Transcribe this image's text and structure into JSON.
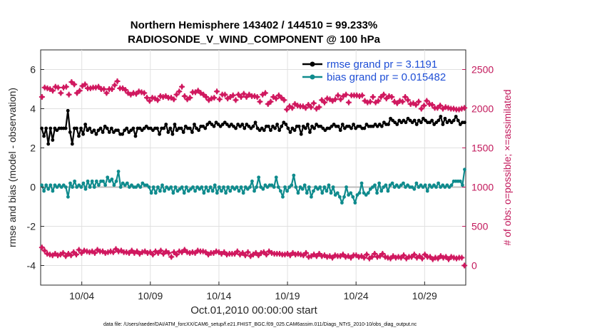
{
  "chart_data": {
    "type": "line",
    "title": "Northern Hemisphere 143402 / 144510 = 99.233%",
    "subtitle": "RADIOSONDE_V_WIND_COMPONENT @ 100 hPa",
    "xlabel": "Oct.01,2010 00:00:00 start",
    "ylabel_left": "rmse and bias (model - observation)",
    "ylabel_right": "# of obs: o=possible; ×=assimilated",
    "footnote": "data file: /Users/raeder/DAI/ATM_forcXX/CAM6_setup/f.e21.FHIST_BGC.f09_025.CAM6assim.011/Diags_NTrS_2010-10/obs_diag_output.nc",
    "x_tick_labels": [
      "10/04",
      "10/09",
      "10/14",
      "10/19",
      "10/24",
      "10/29"
    ],
    "x_tick_days": [
      4,
      9,
      14,
      19,
      24,
      29
    ],
    "x_range_days": [
      1.0,
      32.0
    ],
    "ylim_left": [
      -5,
      7
    ],
    "yticks_left": [
      "-4",
      "-2",
      "0",
      "2",
      "4",
      "6"
    ],
    "ylim_right": [
      -250,
      2750
    ],
    "yticks_right": [
      "0",
      "500",
      "1000",
      "1500",
      "2000",
      "2500"
    ],
    "grid": true,
    "legend_position": "top-right",
    "colors": {
      "rmse": "#000000",
      "bias": "#0f8b8d",
      "obs": "#d0185f",
      "right_axis": "#c2185b",
      "zero_line": "#bdbdbd",
      "legend_text": "#1f4fd6"
    },
    "series": [
      {
        "name": "rmse grand pr = 3.1191",
        "axis": "left",
        "values": [
          3.0,
          2.6,
          3.0,
          2.2,
          3.0,
          2.4,
          3.0,
          2.9,
          3.0,
          3.0,
          3.0,
          3.0,
          3.9,
          2.8,
          2.2,
          3.0,
          3.0,
          2.6,
          3.0,
          2.7,
          3.2,
          2.9,
          3.0,
          2.8,
          2.9,
          2.7,
          2.9,
          3.0,
          2.8,
          3.1,
          3.0,
          2.8,
          3.0,
          2.8,
          2.9,
          2.9,
          2.7,
          2.7,
          2.9,
          3.0,
          2.8,
          2.9,
          3.0,
          2.6,
          3.0,
          3.0,
          2.9,
          3.0,
          3.1,
          3.0,
          3.0,
          2.9,
          3.0,
          3.0,
          2.7,
          3.0,
          3.0,
          3.2,
          2.8,
          3.0,
          2.7,
          3.2,
          2.9,
          3.0,
          3.0,
          2.8,
          3.1,
          3.0,
          3.0,
          2.8,
          3.2,
          3.0,
          2.9,
          3.1,
          3.1,
          3.0,
          3.2,
          3.3,
          3.2,
          3.1,
          3.3,
          3.2,
          3.1,
          3.2,
          3.3,
          3.2,
          3.1,
          3.2,
          3.1,
          3.0,
          3.2,
          3.1,
          3.2,
          3.0,
          3.2,
          3.1,
          3.0,
          3.1,
          3.3,
          3.0,
          2.9,
          3.0,
          2.9,
          3.1,
          3.1,
          2.9,
          3.1,
          3.0,
          3.2,
          2.9,
          3.1,
          3.3,
          3.2,
          3.0,
          2.8,
          3.0,
          2.9,
          3.1,
          3.1,
          2.7,
          3.1,
          3.0,
          3.2,
          2.8,
          3.1,
          3.0,
          3.2,
          3.1,
          3.1,
          3.0,
          2.9,
          3.0,
          3.0,
          3.1,
          3.2,
          3.1,
          3.1,
          2.9,
          3.2,
          3.0,
          3.1,
          3.1,
          3.0,
          3.2,
          3.0,
          3.1,
          3.1,
          3.0,
          3.0,
          3.2,
          3.1,
          3.1,
          3.1,
          3.2,
          3.1,
          3.2,
          3.1,
          3.3,
          3.2,
          3.2,
          3.5,
          3.4,
          3.3,
          3.2,
          3.4,
          3.3,
          3.4,
          3.3,
          3.5,
          3.4,
          3.3,
          3.4,
          3.2,
          3.4,
          3.3,
          3.5,
          3.4,
          3.3,
          3.3,
          3.4,
          3.2,
          3.3,
          3.4,
          3.6,
          3.2,
          3.5,
          3.3,
          3.4,
          3.3,
          3.4,
          3.6,
          3.4,
          3.2,
          3.3,
          3.3
        ]
      },
      {
        "name": "bias grand pr = 0.015482",
        "axis": "left",
        "values": [
          0.1,
          -0.2,
          0.1,
          -0.1,
          0.1,
          -0.2,
          0.1,
          0.0,
          0.1,
          0.0,
          0.1,
          0.0,
          -0.5,
          0.2,
          0.0,
          0.3,
          0.0,
          0.1,
          0.0,
          0.2,
          -0.1,
          0.3,
          0.0,
          0.3,
          0.0,
          0.3,
          0.1,
          0.3,
          0.3,
          0.1,
          0.5,
          0.3,
          0.4,
          0.1,
          0.3,
          0.8,
          0.0,
          0.2,
          0.1,
          0.2,
          0.0,
          0.1,
          0.0,
          0.0,
          0.1,
          0.0,
          0.2,
          0.1,
          0.1,
          0.0,
          -0.3,
          0.0,
          -0.3,
          0.0,
          -0.2,
          0.1,
          -0.2,
          0.0,
          -0.1,
          0.0,
          -0.3,
          0.0,
          -0.2,
          -0.1,
          0.0,
          -0.3,
          0.0,
          -0.2,
          -0.1,
          0.0,
          -0.2,
          0.0,
          -0.1,
          0.0,
          -0.3,
          0.0,
          -0.2,
          0.0,
          -0.2,
          0.1,
          -0.3,
          0.0,
          -0.2,
          0.0,
          -0.3,
          0.0,
          -0.2,
          0.0,
          -0.1,
          0.0,
          -0.2,
          0.0,
          -0.3,
          0.0,
          -0.1,
          0.0,
          0.3,
          -0.2,
          0.0,
          0.5,
          0.0,
          -0.1,
          0.1,
          0.0,
          0.1,
          0.1,
          0.0,
          0.5,
          0.0,
          -0.2,
          -0.5,
          0.0,
          -0.2,
          0.0,
          0.1,
          0.6,
          0.0,
          -0.3,
          0.0,
          -0.1,
          0.1,
          -0.3,
          0.0,
          -0.5,
          -0.2,
          0.0,
          -0.1,
          0.0,
          -0.3,
          0.0,
          -0.2,
          0.1,
          -0.3,
          0.0,
          -0.4,
          -0.3,
          -0.5,
          -0.8,
          -0.5,
          0.0,
          -0.4,
          -0.3,
          -0.5,
          -0.8,
          -0.4,
          -0.3,
          0.2,
          -0.3,
          -0.4,
          -0.3,
          -0.1,
          0.0,
          0.1,
          -0.3,
          0.2,
          -0.2,
          0.0,
          0.1,
          -0.2,
          0.1,
          0.2,
          0.0,
          0.1,
          0.0,
          0.1,
          0.2,
          0.0,
          0.1,
          0.0,
          0.0,
          -0.1,
          0.2,
          0.0,
          0.1,
          0.0,
          0.1,
          -0.2,
          0.1,
          0.0,
          0.1,
          0.0,
          0.2,
          0.0,
          0.1,
          0.0,
          0.1,
          0.0,
          0.1,
          0.3,
          0.3,
          0.3,
          0.3,
          0.1,
          0.9
        ]
      },
      {
        "name": "# of obs possible",
        "axis": "right",
        "values": [
          2150,
          2270,
          2260,
          2250,
          2230,
          2280,
          2270,
          2200,
          2270,
          2280,
          2180,
          2340,
          2310,
          2200,
          2230,
          2290,
          2310,
          2260,
          2260,
          2270,
          2270,
          2280,
          2250,
          2250,
          2200,
          2250,
          2250,
          2300,
          2350,
          2260,
          2260,
          2240,
          2200,
          2180,
          2200,
          2190,
          2220,
          2210,
          2200,
          2140,
          2100,
          2140,
          2130,
          2110,
          2160,
          2150,
          2160,
          2140,
          2140,
          2120,
          2180,
          2220,
          2280,
          2160,
          2120,
          2140,
          2210,
          2210,
          2230,
          2200,
          2180,
          2150,
          2110,
          2130,
          2140,
          2220,
          2120,
          2180,
          2180,
          2130,
          2150,
          2170,
          2110,
          2180,
          2150,
          2190,
          2150,
          2180,
          2160,
          2160,
          2150,
          2090,
          2180,
          2200,
          2060,
          2090,
          2150,
          2130,
          2170,
          2140,
          2110,
          1990,
          2030,
          2010,
          2060,
          2040,
          2030,
          2030,
          2010,
          2050,
          2020,
          2070,
          2000,
          2020,
          2110,
          2080,
          2130,
          2120,
          2100,
          2120,
          2170,
          2120,
          2160,
          2180,
          2080,
          2170,
          2170,
          2170,
          2160,
          2170,
          2100,
          2080,
          2090,
          2150,
          2080,
          2100,
          2150,
          2180,
          2130,
          2160,
          2150,
          2090,
          2070,
          2100,
          2090,
          2150,
          2110,
          2060,
          2070,
          2050,
          2090,
          2000,
          2040,
          2100,
          2060,
          2050,
          2010,
          2010,
          2040,
          2000,
          2020,
          2010,
          2000,
          2000,
          1990,
          1990,
          2000,
          2010
        ]
      },
      {
        "name": "# of obs assimilated",
        "axis": "right",
        "values": [
          230,
          190,
          150,
          140,
          130,
          150,
          130,
          140,
          160,
          120,
          150,
          130,
          170,
          140,
          200,
          160,
          190,
          180,
          170,
          180,
          160,
          200,
          180,
          180,
          160,
          170,
          180,
          170,
          210,
          180,
          190,
          170,
          170,
          160,
          190,
          160,
          180,
          150,
          170,
          180,
          160,
          170,
          140,
          180,
          160,
          190,
          150,
          180,
          160,
          110,
          170,
          140,
          180,
          170,
          200,
          170,
          160,
          170,
          160,
          190,
          180,
          180,
          170,
          140,
          160,
          160,
          180,
          170,
          150,
          170,
          140,
          150,
          150,
          150,
          180,
          140,
          160,
          130,
          170,
          120,
          140,
          160,
          130,
          160,
          170,
          140,
          180,
          160,
          150,
          150,
          150,
          140,
          140,
          150,
          130,
          160,
          140,
          150,
          140,
          130,
          160,
          110,
          120,
          140,
          120,
          150,
          120,
          130,
          110,
          120,
          100,
          130,
          120,
          120,
          140,
          110,
          120,
          100,
          130,
          130,
          110,
          120,
          100,
          140,
          90,
          110,
          150,
          110,
          120,
          150,
          110,
          100,
          90,
          120,
          100,
          110,
          100,
          130,
          90,
          110,
          110,
          140,
          100,
          120,
          90,
          140,
          110,
          110,
          80,
          100,
          90,
          120,
          100,
          110,
          80,
          110,
          100,
          90,
          100,
          100,
          0
        ]
      }
    ]
  }
}
